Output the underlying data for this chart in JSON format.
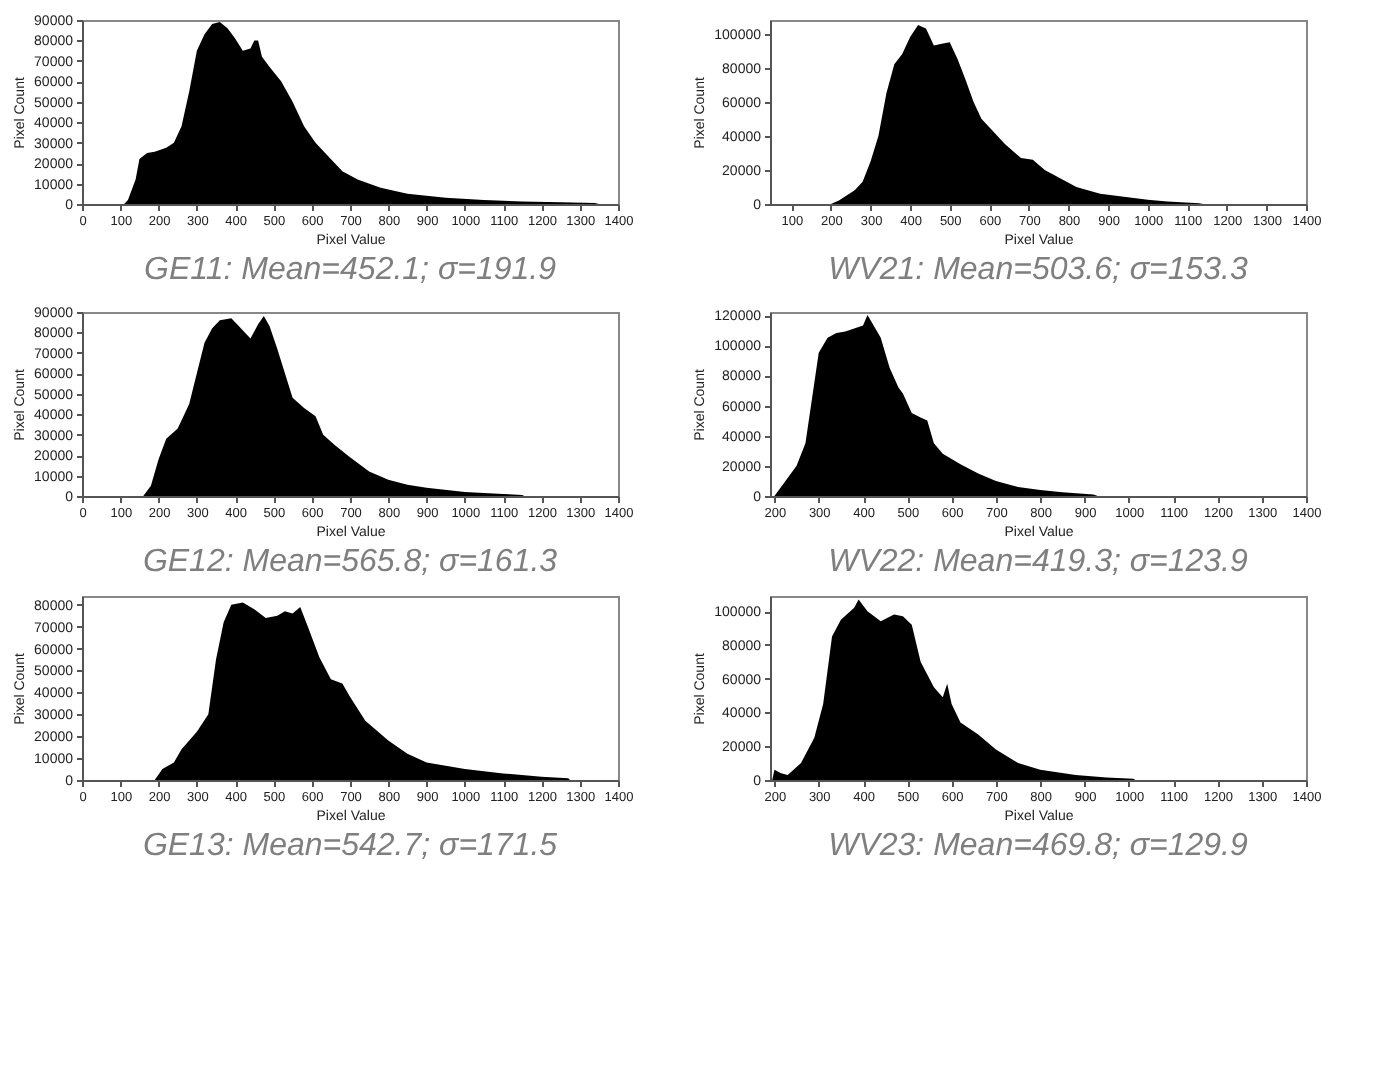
{
  "chart_data": [
    {
      "type": "area",
      "title": "GE11: Mean=452.1; σ=191.9",
      "xlabel": "Pixel Value",
      "ylabel": "Pixel Count",
      "color": "#000000",
      "grid": false,
      "xlim": [
        0,
        1400
      ],
      "xticks": [
        0,
        100,
        200,
        300,
        400,
        500,
        600,
        700,
        800,
        900,
        1000,
        1100,
        1200,
        1300,
        1400
      ],
      "ylim": [
        0,
        90000
      ],
      "yticks": [
        0,
        10000,
        20000,
        30000,
        40000,
        50000,
        60000,
        70000,
        80000,
        90000
      ],
      "x": [
        110,
        120,
        140,
        150,
        170,
        190,
        220,
        240,
        260,
        280,
        300,
        320,
        340,
        360,
        380,
        400,
        420,
        440,
        450,
        460,
        470,
        490,
        520,
        550,
        580,
        610,
        640,
        680,
        720,
        780,
        850,
        950,
        1050,
        1150,
        1250,
        1340,
        1350
      ],
      "values": [
        0,
        2000,
        12000,
        22000,
        25000,
        25500,
        27500,
        30000,
        38000,
        55000,
        75000,
        83000,
        88000,
        89000,
        86000,
        81000,
        75000,
        76000,
        80000,
        80000,
        72000,
        67000,
        60000,
        50000,
        38000,
        30000,
        24000,
        16000,
        12000,
        8000,
        5000,
        3000,
        2000,
        1200,
        800,
        500,
        0
      ]
    },
    {
      "type": "area",
      "title": "WV21: Mean=503.6; σ=153.3",
      "xlabel": "Pixel Value",
      "ylabel": "Pixel Count",
      "color": "#000000",
      "grid": false,
      "xlim": [
        46,
        1400
      ],
      "xticks": [
        100,
        200,
        300,
        400,
        500,
        600,
        700,
        800,
        900,
        1000,
        1100,
        1200,
        1300,
        1400
      ],
      "ylim": [
        0,
        108000
      ],
      "yticks": [
        0,
        20000,
        40000,
        60000,
        80000,
        100000
      ],
      "x": [
        200,
        220,
        260,
        280,
        300,
        320,
        340,
        360,
        380,
        400,
        420,
        440,
        460,
        480,
        500,
        520,
        540,
        560,
        580,
        600,
        640,
        680,
        710,
        740,
        780,
        820,
        880,
        950,
        1000,
        1050,
        1130,
        1140
      ],
      "values": [
        0,
        2000,
        8000,
        13000,
        25000,
        40000,
        65000,
        82000,
        88000,
        98000,
        105000,
        103000,
        93000,
        94000,
        95000,
        85000,
        73000,
        60000,
        50000,
        45000,
        35000,
        27000,
        26000,
        20000,
        15000,
        10000,
        6000,
        4000,
        2500,
        1500,
        500,
        0
      ]
    },
    {
      "type": "area",
      "title": "GE12: Mean=565.8; σ=161.3",
      "xlabel": "Pixel Value",
      "ylabel": "Pixel Count",
      "color": "#000000",
      "grid": false,
      "xlim": [
        0,
        1400
      ],
      "xticks": [
        0,
        100,
        200,
        300,
        400,
        500,
        600,
        700,
        800,
        900,
        1000,
        1100,
        1200,
        1300,
        1400
      ],
      "ylim": [
        0,
        90000
      ],
      "yticks": [
        0,
        10000,
        20000,
        30000,
        40000,
        50000,
        60000,
        70000,
        80000,
        90000
      ],
      "x": [
        160,
        180,
        200,
        220,
        250,
        280,
        300,
        320,
        340,
        360,
        390,
        410,
        440,
        460,
        475,
        490,
        510,
        530,
        550,
        580,
        610,
        630,
        660,
        700,
        750,
        800,
        850,
        900,
        1000,
        1100,
        1150,
        1155
      ],
      "values": [
        0,
        5000,
        18000,
        28000,
        33000,
        45000,
        60000,
        75000,
        82000,
        86000,
        87000,
        83000,
        77000,
        84000,
        88000,
        83000,
        72000,
        60000,
        48000,
        43000,
        39000,
        30000,
        25000,
        19000,
        12000,
        8000,
        5500,
        4000,
        2000,
        1000,
        500,
        0
      ]
    },
    {
      "type": "area",
      "title": "WV22: Mean=419.3; σ=123.9",
      "xlabel": "Pixel Value",
      "ylabel": "Pixel Count",
      "color": "#000000",
      "grid": false,
      "xlim": [
        190,
        1400
      ],
      "xticks": [
        200,
        300,
        400,
        500,
        600,
        700,
        800,
        900,
        1000,
        1100,
        1200,
        1300,
        1400
      ],
      "ylim": [
        0,
        122000
      ],
      "yticks": [
        0,
        20000,
        40000,
        60000,
        80000,
        100000,
        120000
      ],
      "x": [
        200,
        220,
        250,
        270,
        290,
        300,
        320,
        340,
        360,
        380,
        400,
        410,
        420,
        440,
        460,
        480,
        490,
        510,
        530,
        545,
        560,
        580,
        620,
        660,
        700,
        750,
        800,
        850,
        920,
        930
      ],
      "values": [
        0,
        8000,
        20000,
        35000,
        75000,
        95000,
        105000,
        108000,
        109000,
        111000,
        113000,
        120000,
        115000,
        105000,
        85000,
        72000,
        68000,
        55000,
        52000,
        50000,
        35000,
        28000,
        21000,
        15000,
        10000,
        6000,
        4000,
        2500,
        1000,
        0
      ]
    },
    {
      "type": "area",
      "title": "GE13: Mean=542.7; σ=171.5",
      "xlabel": "Pixel Value",
      "ylabel": "Pixel Count",
      "color": "#000000",
      "grid": false,
      "xlim": [
        0,
        1400
      ],
      "xticks": [
        0,
        100,
        200,
        300,
        400,
        500,
        600,
        700,
        800,
        900,
        1000,
        1100,
        1200,
        1300,
        1400
      ],
      "ylim": [
        0,
        84000
      ],
      "yticks": [
        0,
        10000,
        20000,
        30000,
        40000,
        50000,
        60000,
        70000,
        80000
      ],
      "x": [
        190,
        210,
        240,
        260,
        300,
        330,
        350,
        370,
        390,
        420,
        450,
        480,
        510,
        530,
        550,
        570,
        590,
        620,
        650,
        680,
        700,
        740,
        800,
        850,
        900,
        1000,
        1100,
        1200,
        1270,
        1275
      ],
      "values": [
        0,
        5000,
        8000,
        14000,
        22000,
        30000,
        55000,
        72000,
        80000,
        81000,
        78000,
        74000,
        75000,
        77000,
        76000,
        79000,
        70000,
        56000,
        46000,
        44000,
        38000,
        27000,
        18000,
        12000,
        8000,
        5000,
        3000,
        1500,
        800,
        0
      ]
    },
    {
      "type": "area",
      "title": "WV23: Mean=469.8; σ=129.9",
      "xlabel": "Pixel Value",
      "ylabel": "Pixel Count",
      "color": "#000000",
      "grid": false,
      "xlim": [
        190,
        1400
      ],
      "xticks": [
        200,
        300,
        400,
        500,
        600,
        700,
        800,
        900,
        1000,
        1100,
        1200,
        1300,
        1400
      ],
      "ylim": [
        0,
        109000
      ],
      "yticks": [
        0,
        20000,
        40000,
        60000,
        80000,
        100000
      ],
      "x": [
        195,
        200,
        215,
        230,
        260,
        290,
        310,
        330,
        350,
        380,
        390,
        410,
        440,
        470,
        490,
        510,
        530,
        560,
        580,
        590,
        600,
        620,
        660,
        700,
        750,
        800,
        880,
        950,
        1010,
        1015
      ],
      "values": [
        0,
        6000,
        4000,
        3000,
        10000,
        25000,
        45000,
        85000,
        95000,
        102000,
        107000,
        100000,
        94000,
        98000,
        97000,
        92000,
        70000,
        55000,
        49000,
        57000,
        45000,
        34000,
        27000,
        18000,
        10000,
        6000,
        3000,
        1500,
        800,
        0
      ]
    }
  ]
}
